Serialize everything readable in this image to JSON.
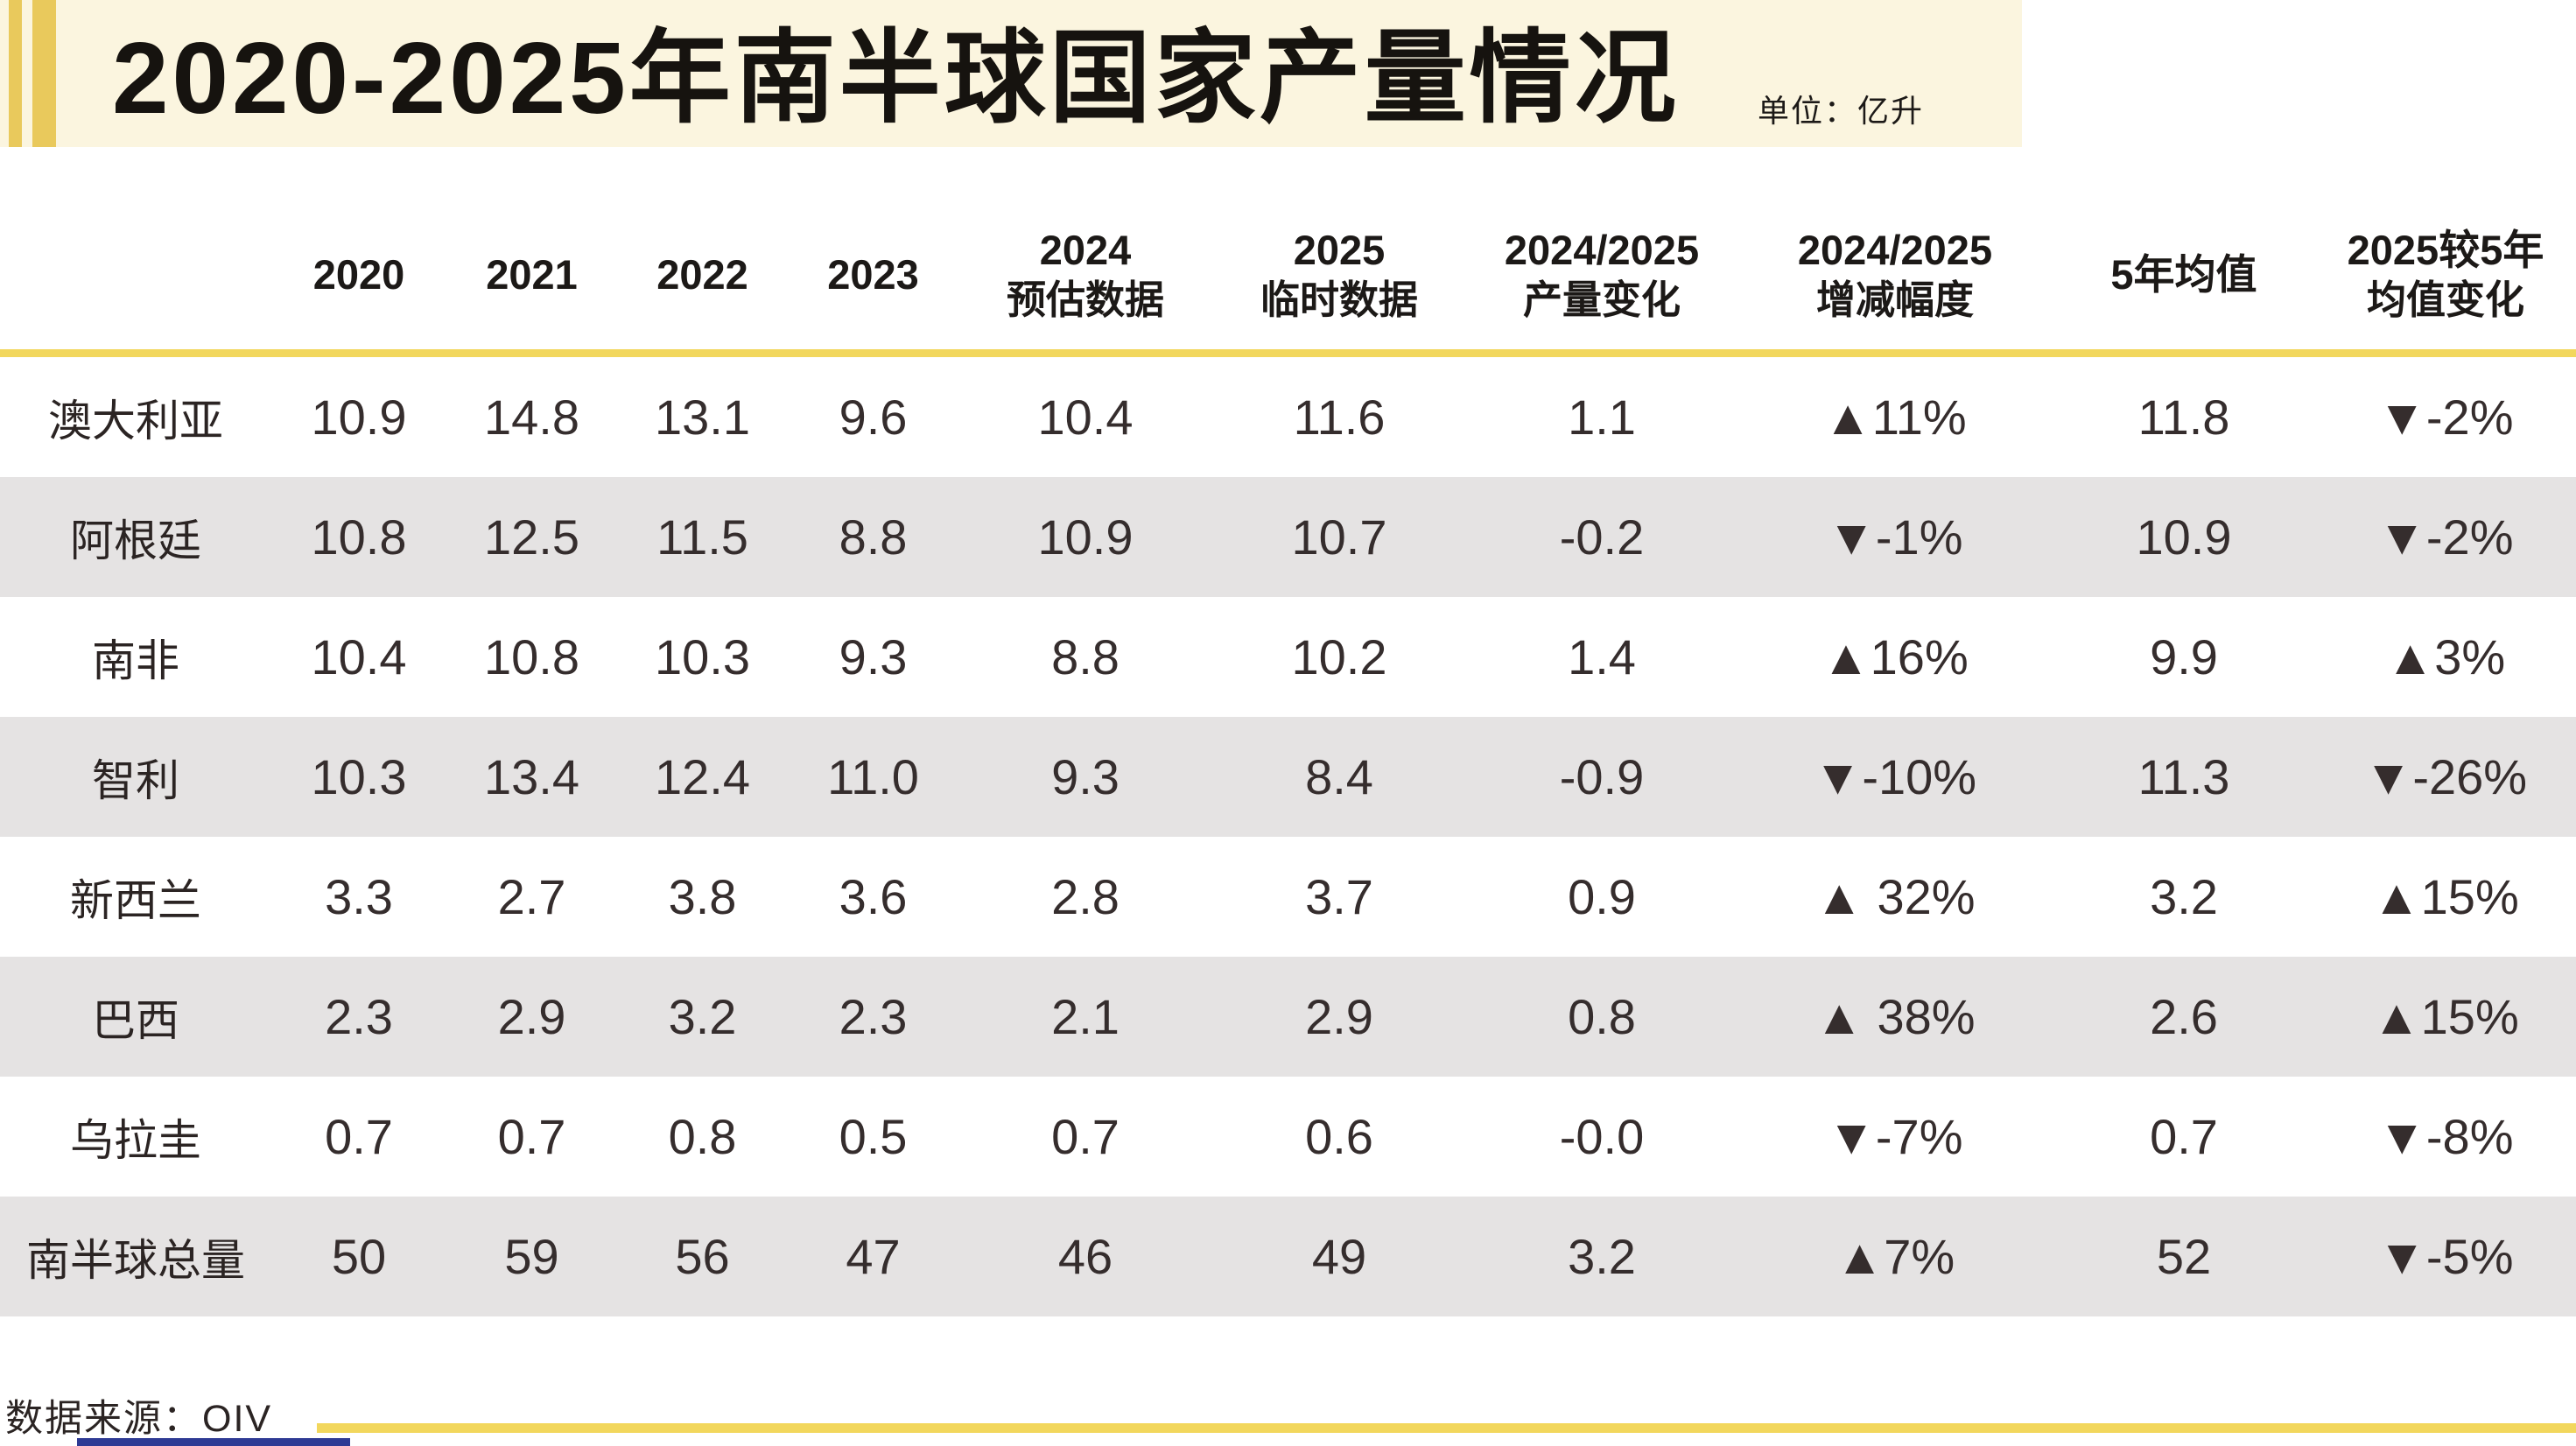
{
  "banner": {
    "title": "2020-2025年南半球国家产量情况",
    "unit_label": "单位：亿升"
  },
  "footer": {
    "source_label": "数据来源：OIV"
  },
  "table": {
    "header": [
      {
        "line1": "2020"
      },
      {
        "line1": "2021"
      },
      {
        "line1": "2022"
      },
      {
        "line1": "2023"
      },
      {
        "line1": "2024",
        "line2": "预估数据"
      },
      {
        "line1": "2025",
        "line2": "临时数据"
      },
      {
        "line1": "2024/2025",
        "line2": "产量变化"
      },
      {
        "line1": "2024/2025",
        "line2": "增减幅度"
      },
      {
        "line1": "5年均值"
      },
      {
        "line1": "2025较5年",
        "line2": "均值变化"
      }
    ]
  },
  "chart_data": {
    "type": "table",
    "title": "2020-2025年南半球国家产量情况",
    "unit": "亿升",
    "source": "OIV",
    "columns": [
      "2020",
      "2021",
      "2022",
      "2023",
      "2024预估数据",
      "2025临时数据",
      "2024/2025产量变化",
      "2024/2025增减幅度",
      "5年均值",
      "2025较5年均值变化"
    ],
    "rows": [
      {
        "name": "澳大利亚",
        "values": [
          "10.9",
          "14.8",
          "13.1",
          "9.6",
          "10.4",
          "11.6",
          "1.1",
          "▲11%",
          "11.8",
          "▼-2%"
        ]
      },
      {
        "name": "阿根廷",
        "values": [
          "10.8",
          "12.5",
          "11.5",
          "8.8",
          "10.9",
          "10.7",
          "-0.2",
          "▼-1%",
          "10.9",
          "▼-2%"
        ]
      },
      {
        "name": "南非",
        "values": [
          "10.4",
          "10.8",
          "10.3",
          "9.3",
          "8.8",
          "10.2",
          "1.4",
          "▲16%",
          "9.9",
          "▲3%"
        ]
      },
      {
        "name": "智利",
        "values": [
          "10.3",
          "13.4",
          "12.4",
          "11.0",
          "9.3",
          "8.4",
          "-0.9",
          "▼-10%",
          "11.3",
          "▼-26%"
        ]
      },
      {
        "name": "新西兰",
        "values": [
          "3.3",
          "2.7",
          "3.8",
          "3.6",
          "2.8",
          "3.7",
          "0.9",
          "▲ 32%",
          "3.2",
          "▲15%"
        ]
      },
      {
        "name": "巴西",
        "values": [
          "2.3",
          "2.9",
          "3.2",
          "2.3",
          "2.1",
          "2.9",
          "0.8",
          "▲ 38%",
          "2.6",
          "▲15%"
        ]
      },
      {
        "name": "乌拉圭",
        "values": [
          "0.7",
          "0.7",
          "0.8",
          "0.5",
          "0.7",
          "0.6",
          "-0.0",
          "▼-7%",
          "0.7",
          "▼-8%"
        ]
      },
      {
        "name": "南半球总量",
        "values": [
          "50",
          "59",
          "56",
          "47",
          "46",
          "49",
          "3.2",
          "▲7%",
          "52",
          "▼-5%"
        ]
      }
    ]
  },
  "colors": {
    "banner_bg": "#fbf5df",
    "accent_gold": "#e9c95c",
    "rule_gold": "#f2d75d",
    "row_alt_gray": "#e5e3e3",
    "text_dark": "#2b2423",
    "footer_bar_blue": "#2e3a94"
  }
}
